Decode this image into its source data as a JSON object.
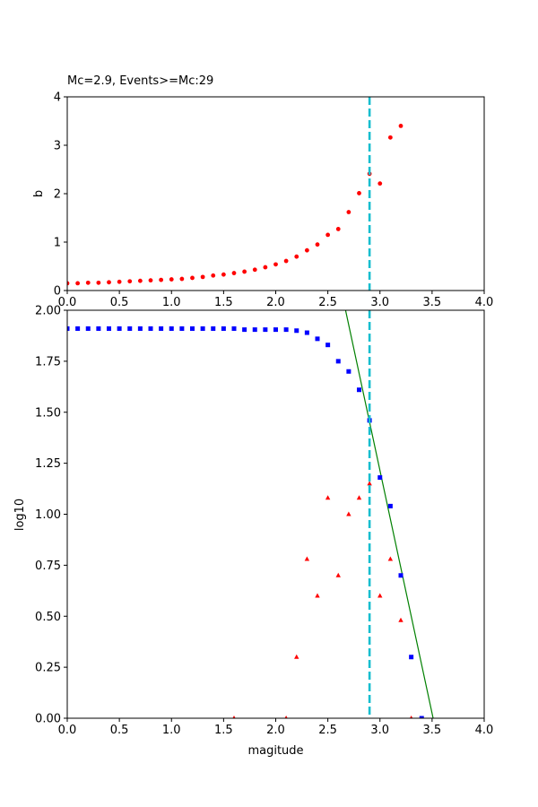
{
  "chart_data": [
    {
      "type": "scatter",
      "title": "Mc=2.9, Events>=Mc:29",
      "xlabel": "",
      "ylabel": "b",
      "xlim": [
        0,
        4
      ],
      "ylim": [
        0,
        4
      ],
      "x_ticks": [
        "0.0",
        "0.5",
        "1.0",
        "1.5",
        "2.0",
        "2.5",
        "3.0",
        "3.5",
        "4.0"
      ],
      "y_ticks": [
        "0",
        "1",
        "2",
        "3",
        "4"
      ],
      "grid": false,
      "vertical_line": {
        "x": 2.9,
        "color": "#17becf",
        "style": "dashed"
      },
      "series": [
        {
          "marker": "circle",
          "color": "#ff0000",
          "points": [
            [
              0.0,
              0.15
            ],
            [
              0.1,
              0.15
            ],
            [
              0.2,
              0.16
            ],
            [
              0.3,
              0.16
            ],
            [
              0.4,
              0.17
            ],
            [
              0.5,
              0.18
            ],
            [
              0.6,
              0.19
            ],
            [
              0.7,
              0.2
            ],
            [
              0.8,
              0.21
            ],
            [
              0.9,
              0.22
            ],
            [
              1.0,
              0.23
            ],
            [
              1.1,
              0.24
            ],
            [
              1.2,
              0.26
            ],
            [
              1.3,
              0.28
            ],
            [
              1.4,
              0.31
            ],
            [
              1.5,
              0.33
            ],
            [
              1.6,
              0.36
            ],
            [
              1.7,
              0.39
            ],
            [
              1.8,
              0.43
            ],
            [
              1.9,
              0.48
            ],
            [
              2.0,
              0.54
            ],
            [
              2.1,
              0.61
            ],
            [
              2.2,
              0.7
            ],
            [
              2.3,
              0.83
            ],
            [
              2.4,
              0.95
            ],
            [
              2.5,
              1.15
            ],
            [
              2.6,
              1.27
            ],
            [
              2.7,
              1.62
            ],
            [
              2.8,
              2.01
            ],
            [
              2.9,
              2.41
            ],
            [
              3.0,
              2.21
            ],
            [
              3.1,
              3.16
            ],
            [
              3.2,
              3.4
            ]
          ]
        }
      ]
    },
    {
      "type": "scatter",
      "title": "",
      "xlabel": "magitude",
      "ylabel": "log10",
      "xlim": [
        0,
        4
      ],
      "ylim": [
        0,
        2
      ],
      "x_ticks": [
        "0.0",
        "0.5",
        "1.0",
        "1.5",
        "2.0",
        "2.5",
        "3.0",
        "3.5",
        "4.0"
      ],
      "y_ticks": [
        "0.00",
        "0.25",
        "0.50",
        "0.75",
        "1.00",
        "1.25",
        "1.50",
        "1.75",
        "2.00"
      ],
      "grid": false,
      "vertical_line": {
        "x": 2.9,
        "color": "#17becf",
        "style": "dashed"
      },
      "fit_line": {
        "color": "#008000",
        "points": [
          [
            2.67,
            2.0
          ],
          [
            3.51,
            0.0
          ]
        ]
      },
      "series": [
        {
          "marker": "square",
          "color": "#0000ff",
          "points": [
            [
              0.0,
              1.91
            ],
            [
              0.1,
              1.91
            ],
            [
              0.2,
              1.91
            ],
            [
              0.3,
              1.91
            ],
            [
              0.4,
              1.91
            ],
            [
              0.5,
              1.91
            ],
            [
              0.6,
              1.91
            ],
            [
              0.7,
              1.91
            ],
            [
              0.8,
              1.91
            ],
            [
              0.9,
              1.91
            ],
            [
              1.0,
              1.91
            ],
            [
              1.1,
              1.91
            ],
            [
              1.2,
              1.91
            ],
            [
              1.3,
              1.91
            ],
            [
              1.4,
              1.91
            ],
            [
              1.5,
              1.91
            ],
            [
              1.6,
              1.91
            ],
            [
              1.7,
              1.905
            ],
            [
              1.8,
              1.905
            ],
            [
              1.9,
              1.905
            ],
            [
              2.0,
              1.905
            ],
            [
              2.1,
              1.905
            ],
            [
              2.2,
              1.9
            ],
            [
              2.3,
              1.89
            ],
            [
              2.4,
              1.86
            ],
            [
              2.5,
              1.83
            ],
            [
              2.6,
              1.75
            ],
            [
              2.7,
              1.7
            ],
            [
              2.8,
              1.61
            ],
            [
              2.9,
              1.46
            ],
            [
              3.0,
              1.18
            ],
            [
              3.1,
              1.04
            ],
            [
              3.2,
              0.7
            ],
            [
              3.3,
              0.3
            ],
            [
              3.4,
              0.0
            ]
          ]
        },
        {
          "marker": "triangle",
          "color": "#ff0000",
          "points": [
            [
              1.6,
              0.0
            ],
            [
              2.1,
              0.0
            ],
            [
              2.2,
              0.3
            ],
            [
              2.3,
              0.78
            ],
            [
              2.4,
              0.6
            ],
            [
              2.5,
              1.08
            ],
            [
              2.6,
              0.7
            ],
            [
              2.7,
              1.0
            ],
            [
              2.8,
              1.08
            ],
            [
              2.9,
              1.15
            ],
            [
              3.0,
              0.6
            ],
            [
              3.1,
              0.78
            ],
            [
              3.2,
              0.48
            ],
            [
              3.3,
              0.0
            ]
          ]
        }
      ]
    }
  ]
}
